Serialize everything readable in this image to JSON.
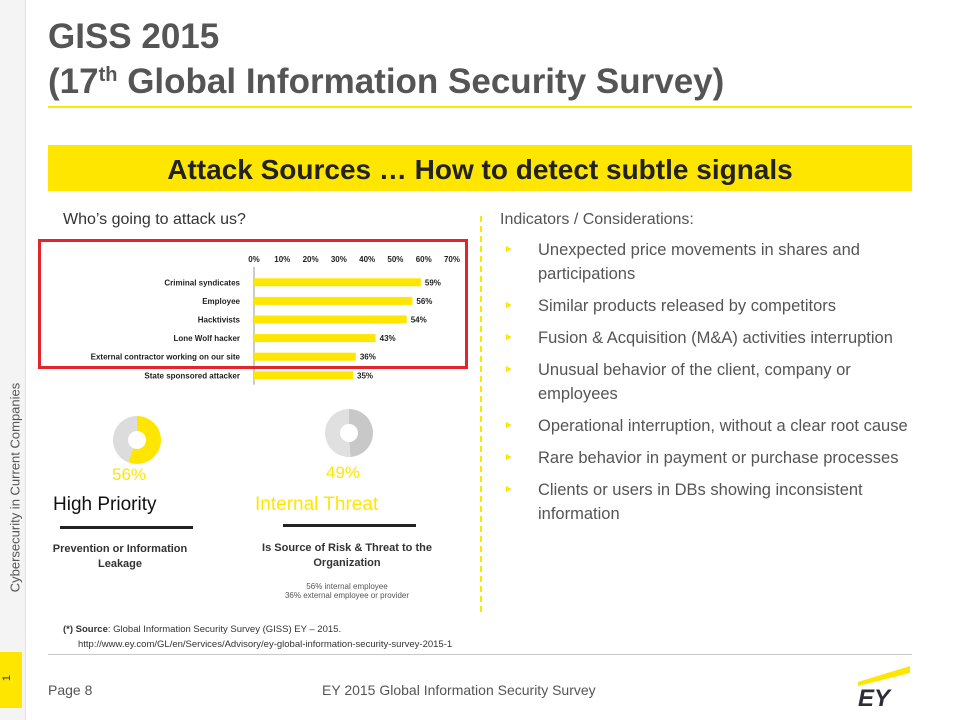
{
  "sidebar": {
    "label": "Cybersecurity in Current Companies",
    "page_marker": "1"
  },
  "title": {
    "line1": "GISS 2015",
    "line2_pre": "(17",
    "line2_sup": "th",
    "line2_post": " Global Information Security Survey)"
  },
  "banner": "Attack Sources … How to detect subtle signals",
  "left": {
    "question": "Who’s going to attack us?",
    "chart_data": {
      "type": "bar",
      "orientation": "horizontal",
      "categories": [
        "Criminal syndicates",
        "Employee",
        "Hacktivists",
        "Lone Wolf hacker",
        "External contractor working on our site",
        "State sponsored attacker"
      ],
      "values": [
        59,
        56,
        54,
        43,
        36,
        35
      ],
      "value_labels": [
        "59%",
        "56%",
        "54%",
        "43%",
        "36%",
        "35%"
      ],
      "xlim": [
        0,
        70
      ],
      "xticks": [
        "0%",
        "10%",
        "20%",
        "30%",
        "40%",
        "50%",
        "60%",
        "70%"
      ],
      "tick_values": [
        0,
        10,
        20,
        30,
        40,
        50,
        60,
        70
      ],
      "grid": false,
      "legend": "none",
      "bar_color": "#ffe600"
    },
    "kpis": [
      {
        "percent": "56%",
        "value": 56,
        "title": "High Priority",
        "desc": "Prevention or Information Leakage",
        "note": ""
      },
      {
        "percent": "49%",
        "value": 49,
        "title": "Internal Threat",
        "desc": "Is Source of Risk & Threat to the Organization",
        "note_line1": "56% internal employee",
        "note_line2": "36% external employee or provider"
      }
    ]
  },
  "right": {
    "heading": "Indicators / Considerations:",
    "bullet_glyph": "►",
    "items": [
      "Unexpected price movements in shares and participations",
      "Similar products released by competitors",
      "Fusion & Acquisition (M&A) activities interruption",
      "Unusual behavior of the client, company or employees",
      "Operational interruption, without a clear root cause",
      "Rare behavior in payment or purchase processes",
      "Clients or users in DBs showing inconsistent information"
    ]
  },
  "source": {
    "prefix": "(*) Source",
    "text": ": Global Information Security Survey (GISS) EY – 2015.",
    "url": "http://www.ey.com/GL/en/Services/Advisory/ey-global-information-security-survey-2015-1"
  },
  "footer": {
    "page": "Page 8",
    "text": "EY 2015 Global Information Security Survey",
    "logo_text": "EY"
  },
  "colors": {
    "accent": "#ffe600",
    "highlight_frame": "#e2252b",
    "text": "#555555"
  }
}
